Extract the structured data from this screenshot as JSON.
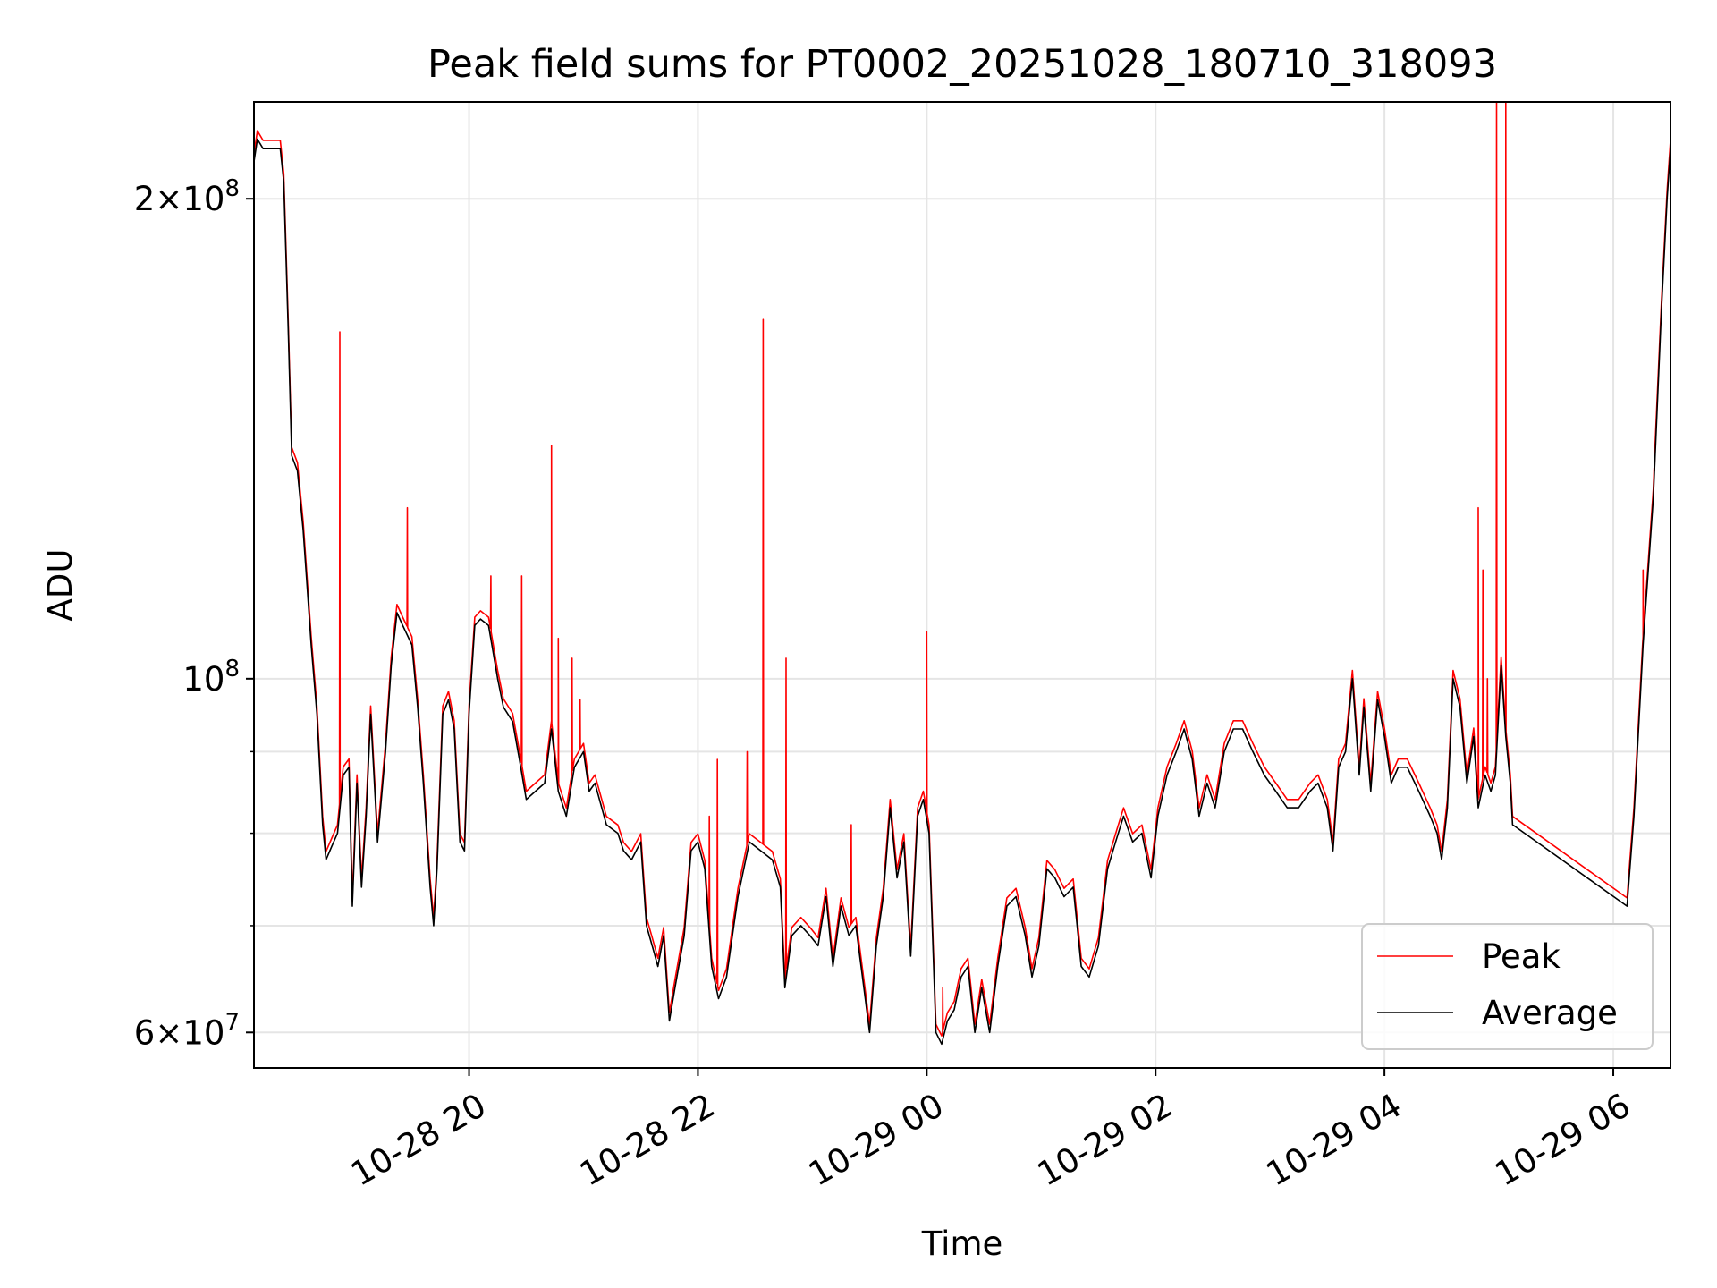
{
  "chart_data": {
    "type": "line",
    "title": "Peak field sums for PT0002_20251028_180710_318093",
    "xlabel": "Time",
    "ylabel": "ADU",
    "yscale": "log",
    "grid": true,
    "legend_position": "lower-right",
    "xlim": [
      18.12,
      30.5
    ],
    "ylim": [
      57000000,
      230000000
    ],
    "x_ticks": [
      {
        "value": 20,
        "label": "10-28 20"
      },
      {
        "value": 22,
        "label": "10-28 22"
      },
      {
        "value": 24,
        "label": "10-29 00"
      },
      {
        "value": 26,
        "label": "10-29 02"
      },
      {
        "value": 28,
        "label": "10-29 04"
      },
      {
        "value": 30,
        "label": "10-29 06"
      }
    ],
    "y_ticks_labeled": [
      {
        "value": 60000000,
        "mantissa": "6",
        "times": "×",
        "base": "10",
        "exponent": "7"
      },
      {
        "value": 100000000,
        "mantissa": "",
        "times": "",
        "base": "10",
        "exponent": "8"
      },
      {
        "value": 200000000,
        "mantissa": "2",
        "times": "×",
        "base": "10",
        "exponent": "8"
      }
    ],
    "y_minor_grid": [
      70000000,
      80000000,
      90000000
    ],
    "x_unit": "hours since 2025-10-28 00:00",
    "series": [
      {
        "name": "Average",
        "color": "#000000",
        "points": [
          [
            18.12,
            211000000.0
          ],
          [
            18.15,
            218000000.0
          ],
          [
            18.2,
            215000000.0
          ],
          [
            18.35,
            215000000.0
          ],
          [
            18.38,
            205000000.0
          ],
          [
            18.42,
            165000000.0
          ],
          [
            18.45,
            138000000.0
          ],
          [
            18.5,
            135000000.0
          ],
          [
            18.55,
            124000000.0
          ],
          [
            18.62,
            105000000.0
          ],
          [
            18.67,
            95000000.0
          ],
          [
            18.72,
            81000000.0
          ],
          [
            18.75,
            77000000.0
          ],
          [
            18.8,
            78500000.0
          ],
          [
            18.85,
            80000000.0
          ],
          [
            18.9,
            87000000.0
          ],
          [
            18.95,
            88000000.0
          ],
          [
            18.98,
            72000000.0
          ],
          [
            19.02,
            86000000.0
          ],
          [
            19.06,
            74000000.0
          ],
          [
            19.1,
            82000000.0
          ],
          [
            19.14,
            95000000.0
          ],
          [
            19.2,
            79000000.0
          ],
          [
            19.27,
            90000000.0
          ],
          [
            19.32,
            102000000.0
          ],
          [
            19.37,
            110000000.0
          ],
          [
            19.42,
            108000000.0
          ],
          [
            19.5,
            105000000.0
          ],
          [
            19.55,
            96000000.0
          ],
          [
            19.6,
            86000000.0
          ],
          [
            19.66,
            74000000.0
          ],
          [
            19.69,
            70000000.0
          ],
          [
            19.72,
            76000000.0
          ],
          [
            19.77,
            95000000.0
          ],
          [
            19.82,
            97000000.0
          ],
          [
            19.87,
            93000000.0
          ],
          [
            19.92,
            79000000.0
          ],
          [
            19.96,
            78000000.0
          ],
          [
            20.0,
            95000000.0
          ],
          [
            20.05,
            108000000.0
          ],
          [
            20.1,
            109000000.0
          ],
          [
            20.17,
            108000000.0
          ],
          [
            20.25,
            100000000.0
          ],
          [
            20.3,
            96000000.0
          ],
          [
            20.38,
            94000000.0
          ],
          [
            20.44,
            89000000.0
          ],
          [
            20.5,
            84000000.0
          ],
          [
            20.58,
            85000000.0
          ],
          [
            20.66,
            86000000.0
          ],
          [
            20.72,
            93000000.0
          ],
          [
            20.78,
            85000000.0
          ],
          [
            20.85,
            82000000.0
          ],
          [
            20.92,
            88000000.0
          ],
          [
            21.0,
            90000000.0
          ],
          [
            21.05,
            85000000.0
          ],
          [
            21.1,
            86000000.0
          ],
          [
            21.2,
            81000000.0
          ],
          [
            21.3,
            80000000.0
          ],
          [
            21.35,
            78000000.0
          ],
          [
            21.42,
            77000000.0
          ],
          [
            21.5,
            79000000.0
          ],
          [
            21.55,
            70000000.0
          ],
          [
            21.6,
            68000000.0
          ],
          [
            21.65,
            66000000.0
          ],
          [
            21.7,
            69000000.0
          ],
          [
            21.75,
            61000000.0
          ],
          [
            21.8,
            64000000.0
          ],
          [
            21.88,
            69000000.0
          ],
          [
            21.94,
            78000000.0
          ],
          [
            22.0,
            79000000.0
          ],
          [
            22.06,
            76000000.0
          ],
          [
            22.12,
            66000000.0
          ],
          [
            22.18,
            63000000.0
          ],
          [
            22.25,
            65000000.0
          ],
          [
            22.35,
            73000000.0
          ],
          [
            22.45,
            79000000.0
          ],
          [
            22.55,
            78000000.0
          ],
          [
            22.65,
            77000000.0
          ],
          [
            22.72,
            74000000.0
          ],
          [
            22.76,
            64000000.0
          ],
          [
            22.82,
            69000000.0
          ],
          [
            22.9,
            70000000.0
          ],
          [
            22.98,
            69000000.0
          ],
          [
            23.05,
            68000000.0
          ],
          [
            23.12,
            73000000.0
          ],
          [
            23.18,
            66000000.0
          ],
          [
            23.25,
            72000000.0
          ],
          [
            23.32,
            69000000.0
          ],
          [
            23.38,
            70000000.0
          ],
          [
            23.45,
            64000000.0
          ],
          [
            23.5,
            60000000.0
          ],
          [
            23.56,
            68000000.0
          ],
          [
            23.62,
            73000000.0
          ],
          [
            23.68,
            83000000.0
          ],
          [
            23.74,
            75000000.0
          ],
          [
            23.8,
            79000000.0
          ],
          [
            23.86,
            67000000.0
          ],
          [
            23.92,
            82000000.0
          ],
          [
            23.97,
            84000000.0
          ],
          [
            24.02,
            80000000.0
          ],
          [
            24.08,
            60000000.0
          ],
          [
            24.13,
            59000000.0
          ],
          [
            24.18,
            61000000.0
          ],
          [
            24.24,
            62000000.0
          ],
          [
            24.3,
            65000000.0
          ],
          [
            24.36,
            66000000.0
          ],
          [
            24.42,
            60000000.0
          ],
          [
            24.48,
            64000000.0
          ],
          [
            24.55,
            60000000.0
          ],
          [
            24.62,
            66000000.0
          ],
          [
            24.7,
            72000000.0
          ],
          [
            24.78,
            73000000.0
          ],
          [
            24.86,
            69000000.0
          ],
          [
            24.92,
            65000000.0
          ],
          [
            24.98,
            68000000.0
          ],
          [
            25.05,
            76000000.0
          ],
          [
            25.12,
            75000000.0
          ],
          [
            25.2,
            73000000.0
          ],
          [
            25.28,
            74000000.0
          ],
          [
            25.35,
            66000000.0
          ],
          [
            25.42,
            65000000.0
          ],
          [
            25.5,
            68000000.0
          ],
          [
            25.58,
            76000000.0
          ],
          [
            25.65,
            79000000.0
          ],
          [
            25.72,
            82000000.0
          ],
          [
            25.8,
            79000000.0
          ],
          [
            25.88,
            80000000.0
          ],
          [
            25.96,
            75000000.0
          ],
          [
            26.02,
            82000000.0
          ],
          [
            26.1,
            87000000.0
          ],
          [
            26.18,
            90000000.0
          ],
          [
            26.25,
            93000000.0
          ],
          [
            26.32,
            89000000.0
          ],
          [
            26.38,
            82000000.0
          ],
          [
            26.45,
            86000000.0
          ],
          [
            26.52,
            83000000.0
          ],
          [
            26.6,
            90000000.0
          ],
          [
            26.68,
            93000000.0
          ],
          [
            26.76,
            93000000.0
          ],
          [
            26.85,
            90000000.0
          ],
          [
            26.95,
            87000000.0
          ],
          [
            27.05,
            85000000.0
          ],
          [
            27.15,
            83000000.0
          ],
          [
            27.25,
            83000000.0
          ],
          [
            27.35,
            85000000.0
          ],
          [
            27.42,
            86000000.0
          ],
          [
            27.5,
            83000000.0
          ],
          [
            27.55,
            78000000.0
          ],
          [
            27.6,
            88000000.0
          ],
          [
            27.66,
            90000000.0
          ],
          [
            27.72,
            100000000.0
          ],
          [
            27.78,
            87000000.0
          ],
          [
            27.82,
            96000000.0
          ],
          [
            27.88,
            85000000.0
          ],
          [
            27.94,
            97000000.0
          ],
          [
            28.0,
            92000000.0
          ],
          [
            28.06,
            86000000.0
          ],
          [
            28.12,
            88000000.0
          ],
          [
            28.2,
            88000000.0
          ],
          [
            28.3,
            85000000.0
          ],
          [
            28.4,
            82000000.0
          ],
          [
            28.46,
            80000000.0
          ],
          [
            28.5,
            77000000.0
          ],
          [
            28.55,
            83000000.0
          ],
          [
            28.6,
            100000000.0
          ],
          [
            28.66,
            96000000.0
          ],
          [
            28.72,
            86000000.0
          ],
          [
            28.78,
            92000000.0
          ],
          [
            28.82,
            83000000.0
          ],
          [
            28.88,
            87000000.0
          ],
          [
            28.93,
            85000000.0
          ],
          [
            28.97,
            87000000.0
          ],
          [
            29.02,
            102000000.0
          ],
          [
            29.06,
            92000000.0
          ],
          [
            29.1,
            86000000.0
          ],
          [
            29.12,
            81000000.0
          ],
          [
            30.12,
            72000000.0
          ],
          [
            30.18,
            82000000.0
          ],
          [
            30.26,
            105000000.0
          ],
          [
            30.35,
            130000000.0
          ],
          [
            30.42,
            170000000.0
          ],
          [
            30.47,
            200000000.0
          ],
          [
            30.5,
            215000000.0
          ]
        ]
      },
      {
        "name": "Peak",
        "color": "#ff0000",
        "spikes": [
          [
            18.87,
            165000000.0
          ],
          [
            19.46,
            128000000.0
          ],
          [
            20.19,
            116000000.0
          ],
          [
            20.46,
            116000000.0
          ],
          [
            20.72,
            140000000.0
          ],
          [
            20.78,
            106000000.0
          ],
          [
            20.9,
            103000000.0
          ],
          [
            20.97,
            97000000.0
          ],
          [
            22.17,
            89000000.0
          ],
          [
            22.1,
            82000000.0
          ],
          [
            22.43,
            90000000.0
          ],
          [
            22.57,
            168000000.0
          ],
          [
            22.77,
            103000000.0
          ],
          [
            23.34,
            81000000.0
          ],
          [
            24.0,
            107000000.0
          ],
          [
            24.14,
            64000000.0
          ],
          [
            28.82,
            128000000.0
          ],
          [
            28.86,
            117000000.0
          ],
          [
            28.9,
            100000000.0
          ],
          [
            28.98,
            230000000.0
          ],
          [
            29.06,
            230000000.0
          ],
          [
            30.26,
            117000000.0
          ],
          [
            30.36,
            135000000.0
          ]
        ]
      }
    ]
  }
}
